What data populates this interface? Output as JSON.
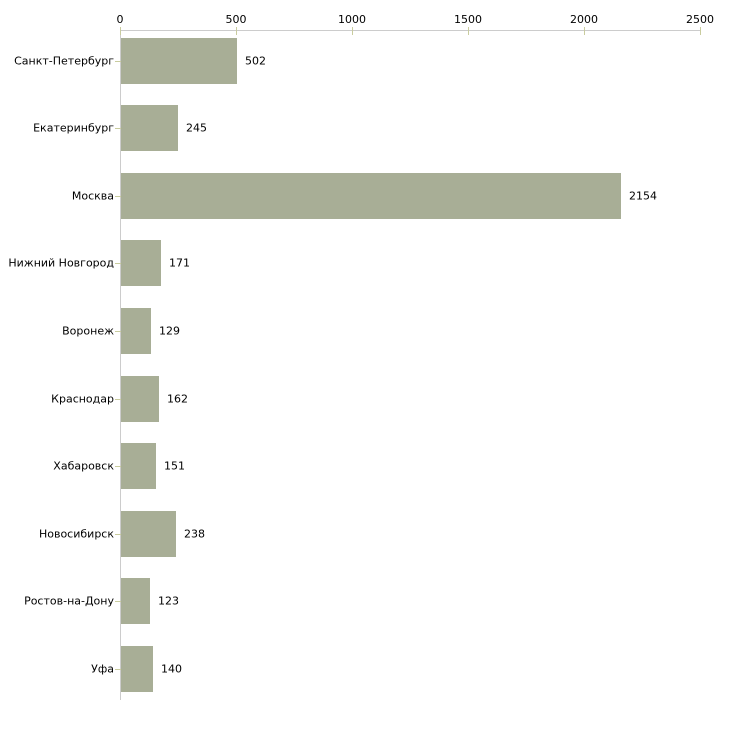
{
  "chart_data": {
    "type": "bar",
    "orientation": "horizontal",
    "title": "",
    "xlabel": "",
    "ylabel": "",
    "categories": [
      "Санкт-Петербург",
      "Екатеринбург",
      "Москва",
      "Нижний Новгород",
      "Воронеж",
      "Краснодар",
      "Хабаровск",
      "Новосибирск",
      "Ростов-на-Дону",
      "Уфа"
    ],
    "values": [
      502,
      245,
      2154,
      171,
      129,
      162,
      151,
      238,
      123,
      140
    ],
    "value_labels": [
      "502",
      "245",
      "2154",
      "171",
      "129",
      "162",
      "151",
      "238",
      "123",
      "140"
    ],
    "x_axis": {
      "position": "top",
      "min": 0,
      "max": 2500,
      "ticks": [
        0,
        500,
        1000,
        1500,
        2000,
        2500
      ],
      "tick_labels": [
        "0",
        "500",
        "1000",
        "1500",
        "2000",
        "2500"
      ]
    },
    "grid": false,
    "legend": null,
    "colors": {
      "bar": "#a8ae96",
      "axis_line": "#cccccc",
      "tick_mark": "#c9cc9e",
      "text": "#000000",
      "background": "#ffffff"
    }
  }
}
